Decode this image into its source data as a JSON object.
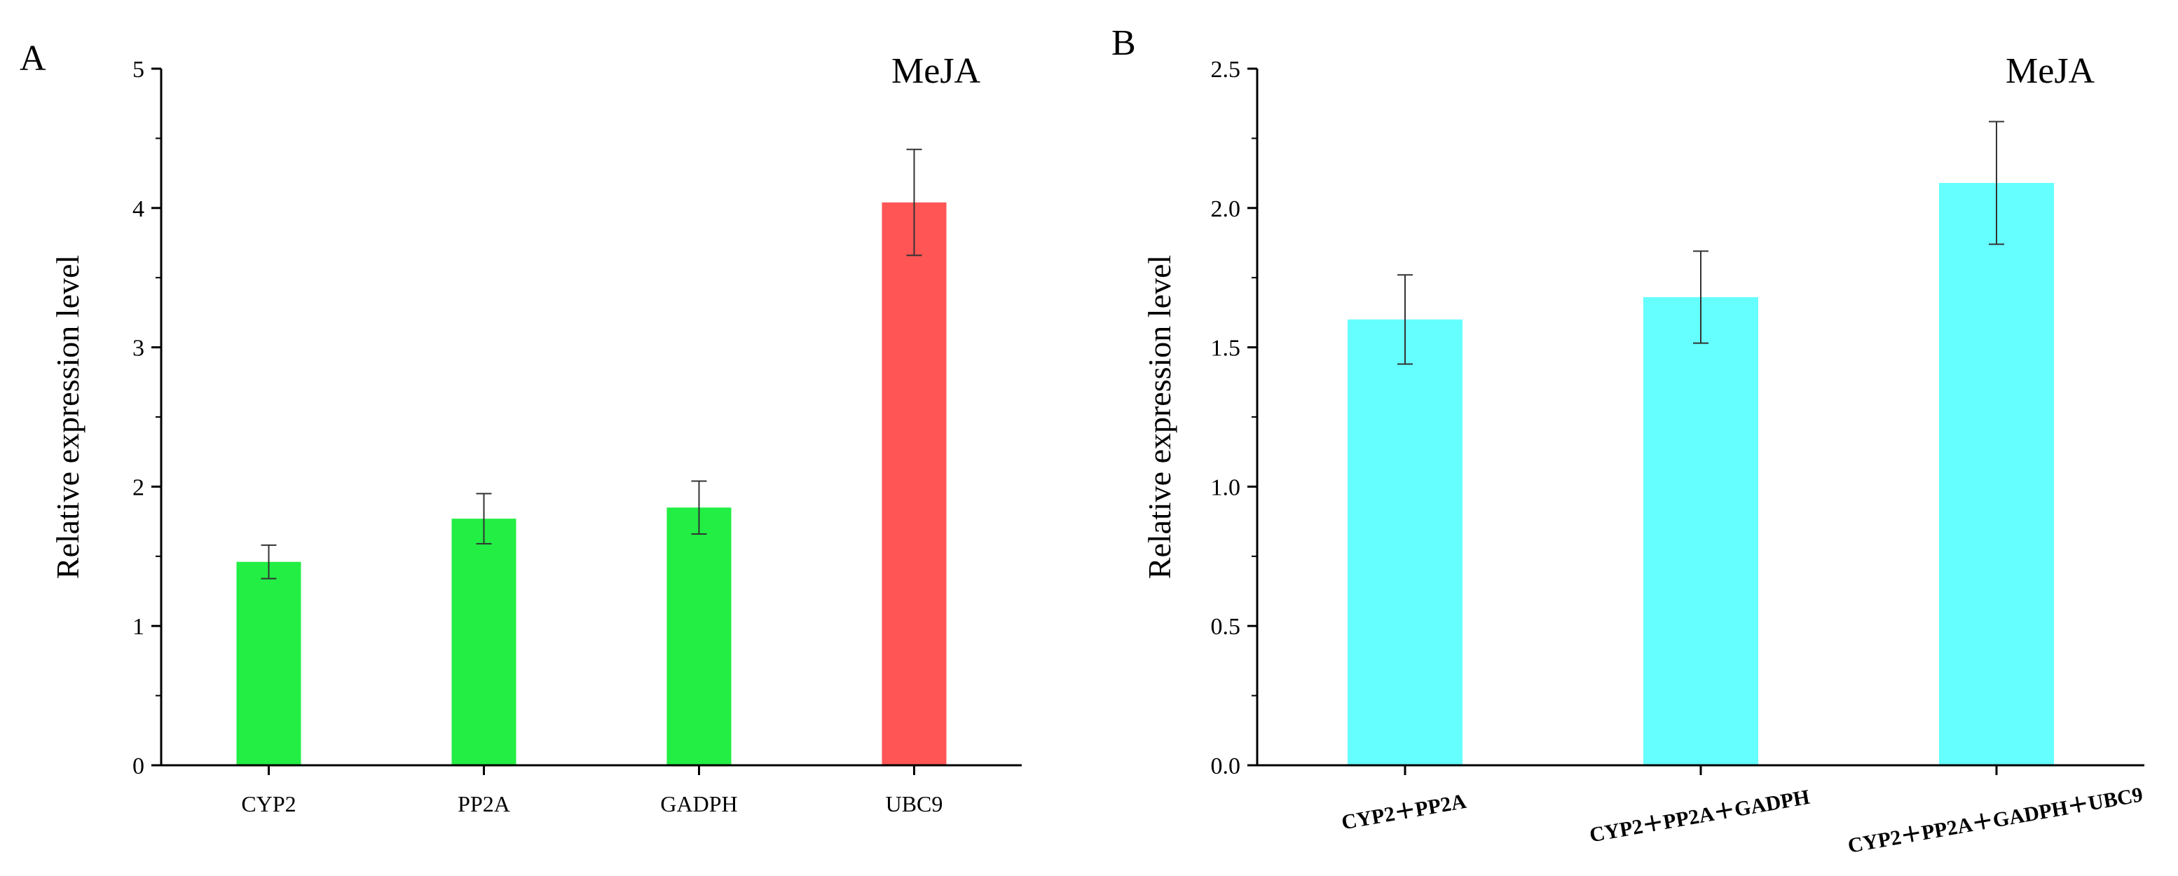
{
  "chart_data": [
    {
      "panel": "A",
      "type": "bar",
      "title": "MeJA",
      "ylabel": "Relative expression level",
      "xlabel": "",
      "categories": [
        "CYP2",
        "PP2A",
        "GADPH",
        "UBC9"
      ],
      "values": [
        1.46,
        1.77,
        1.85,
        4.04
      ],
      "errors": [
        0.12,
        0.18,
        0.19,
        0.38
      ],
      "colors": [
        "#22ee44",
        "#22ee44",
        "#22ee44",
        "#ff5555"
      ],
      "ylim": [
        0,
        5
      ],
      "yticks": [
        "0",
        "1",
        "2",
        "3",
        "4",
        "5"
      ],
      "grid": false
    },
    {
      "panel": "B",
      "type": "bar",
      "title": "MeJA",
      "ylabel": "Relative expression level",
      "xlabel": "",
      "categories": [
        "CYP2＋PP2A",
        "CYP2＋PP2A＋GADPH",
        "CYP2＋PP2A＋GADPH＋UBC9"
      ],
      "values": [
        1.6,
        1.68,
        2.09
      ],
      "errors": [
        0.16,
        0.165,
        0.22
      ],
      "colors": [
        "#66ffff",
        "#66ffff",
        "#66ffff"
      ],
      "ylim": [
        0,
        2.5
      ],
      "yticks": [
        "0.0",
        "0.5",
        "1.0",
        "1.5",
        "2.0",
        "2.5"
      ],
      "grid": false
    }
  ]
}
